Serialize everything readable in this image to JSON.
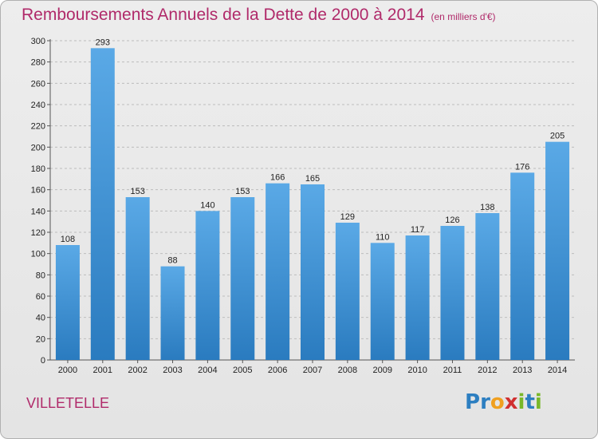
{
  "chart_data": {
    "type": "bar",
    "title": "Remboursements Annuels de la Dette de 2000 à 2014",
    "subtitle": "(en milliers d'€)",
    "categories": [
      "2000",
      "2001",
      "2002",
      "2003",
      "2004",
      "2005",
      "2006",
      "2007",
      "2008",
      "2009",
      "2010",
      "2011",
      "2012",
      "2013",
      "2014"
    ],
    "values": [
      108,
      293,
      153,
      88,
      140,
      153,
      166,
      165,
      129,
      110,
      117,
      126,
      138,
      176,
      205
    ],
    "xlabel": "",
    "ylabel": "",
    "ylim": [
      0,
      300
    ],
    "yticks": [
      0,
      20,
      40,
      60,
      80,
      100,
      120,
      140,
      160,
      180,
      200,
      220,
      240,
      260,
      280,
      300
    ],
    "grid": "horizontal dashed",
    "bar_color_top": "#5aa9e6",
    "bar_color_bottom": "#2a7bbf"
  },
  "footer": {
    "town": "VILLETELLE",
    "logo_letters": [
      "P",
      "r",
      "o",
      "x",
      "i",
      "t",
      "i"
    ],
    "logo_colors": [
      "#2d7fc1",
      "#2d7fc1",
      "#f0a020",
      "#d03030",
      "#79b829",
      "#2d7fc1",
      "#79b829"
    ]
  },
  "colors": {
    "title": "#b02a6a",
    "background": "#e8e8e8"
  }
}
